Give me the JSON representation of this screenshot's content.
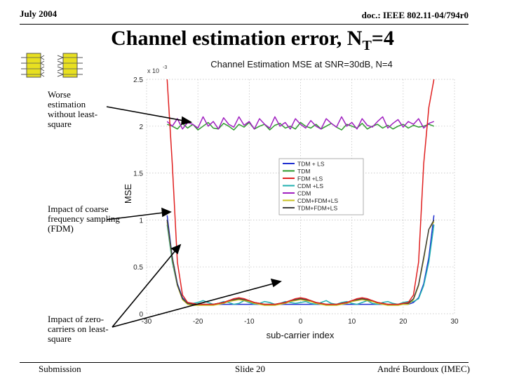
{
  "header": {
    "date": "July 2004",
    "doc": "doc.: IEEE 802.11-04/794r0"
  },
  "slide": {
    "title_main": "Channel estimation error, N",
    "title_sub": "T",
    "title_tail": "=4",
    "annotations": [
      "Worse estimation without least-square",
      "Impact of coarse frequency sampling (FDM)",
      "Impact of zero-carriers on least-square"
    ]
  },
  "footer": {
    "left": "Submission",
    "center": "Slide 20",
    "right": "André Bourdoux (IMEC)"
  },
  "colors": {
    "tdm_ls": "#1f2fd0",
    "tdm": "#2e9a2e",
    "fdm_ls": "#e02020",
    "cdm_ls": "#20b0b0",
    "cdm": "#a020c0",
    "cdm_fdm_ls": "#c8c020",
    "tdm_fdm_ls": "#404040"
  },
  "chart_data": {
    "type": "line",
    "title": "Channel Estimation MSE at SNR=30dB, N=4",
    "xlabel": "sub-carrier index",
    "ylabel": "MSE",
    "yscale_label": "x 10",
    "yscale_exp": "-3",
    "xlim": [
      -30,
      30
    ],
    "ylim": [
      0,
      2.5
    ],
    "xticks": [
      -30,
      -20,
      -10,
      0,
      10,
      20,
      30
    ],
    "xtick_labels": [
      "-30",
      "-20",
      "-10",
      "0",
      "10",
      "20",
      "30"
    ],
    "yticks": [
      0,
      0.5,
      1,
      1.5,
      2,
      2.5
    ],
    "ytick_labels": [
      "0",
      "0.5",
      "1",
      "1.5",
      "2",
      "2.5"
    ],
    "grid": true,
    "legend_position": "right",
    "x": [
      -26,
      -25,
      -24,
      -23,
      -22,
      -21,
      -20,
      -19,
      -18,
      -17,
      -16,
      -15,
      -14,
      -13,
      -12,
      -11,
      -10,
      -9,
      -8,
      -7,
      -6,
      -5,
      -4,
      -3,
      -2,
      -1,
      0,
      1,
      2,
      3,
      4,
      5,
      6,
      7,
      8,
      9,
      10,
      11,
      12,
      13,
      14,
      15,
      16,
      17,
      18,
      19,
      20,
      21,
      22,
      23,
      24,
      25,
      26
    ],
    "series": [
      {
        "name": "TDM + LS",
        "color_key": "tdm_ls",
        "values": [
          1.05,
          0.6,
          0.32,
          0.17,
          0.12,
          0.1,
          0.1,
          0.1,
          0.1,
          0.1,
          0.1,
          0.1,
          0.1,
          0.1,
          0.1,
          0.1,
          0.1,
          0.1,
          0.1,
          0.1,
          0.1,
          0.1,
          0.1,
          0.1,
          0.1,
          0.1,
          0.1,
          0.1,
          0.1,
          0.1,
          0.1,
          0.1,
          0.1,
          0.1,
          0.1,
          0.1,
          0.1,
          0.1,
          0.1,
          0.1,
          0.1,
          0.1,
          0.1,
          0.1,
          0.1,
          0.1,
          0.1,
          0.1,
          0.12,
          0.17,
          0.32,
          0.6,
          1.05
        ]
      },
      {
        "name": "TDM",
        "color_key": "tdm",
        "values": [
          2.02,
          2.0,
          1.97,
          2.03,
          1.98,
          2.02,
          1.96,
          2.0,
          2.04,
          1.98,
          1.97,
          2.03,
          2.0,
          1.96,
          2.02,
          1.99,
          2.04,
          1.97,
          2.0,
          2.02,
          1.96,
          2.01,
          2.03,
          1.98,
          2.0,
          1.97,
          2.04,
          2.0,
          1.98,
          2.02,
          1.97,
          2.0,
          2.03,
          1.99,
          1.96,
          2.02,
          2.0,
          1.98,
          2.03,
          1.97,
          2.0,
          2.02,
          1.98,
          2.01,
          1.97,
          2.0,
          2.02,
          1.98,
          2.01,
          1.99,
          2.0,
          2.02,
          2.0
        ]
      },
      {
        "name": "FDM +LS",
        "color_key": "fdm_ls",
        "values": [
          2.5,
          1.6,
          0.55,
          0.2,
          0.12,
          0.11,
          0.1,
          0.1,
          0.1,
          0.1,
          0.11,
          0.12,
          0.14,
          0.16,
          0.17,
          0.16,
          0.14,
          0.12,
          0.11,
          0.1,
          0.1,
          0.1,
          0.11,
          0.12,
          0.14,
          0.16,
          0.17,
          0.16,
          0.14,
          0.12,
          0.11,
          0.1,
          0.1,
          0.1,
          0.11,
          0.12,
          0.14,
          0.16,
          0.17,
          0.16,
          0.14,
          0.12,
          0.11,
          0.1,
          0.1,
          0.1,
          0.11,
          0.12,
          0.2,
          0.55,
          1.6,
          2.2,
          2.5
        ]
      },
      {
        "name": "CDM +LS",
        "color_key": "cdm_ls",
        "values": [
          0.95,
          0.55,
          0.3,
          0.16,
          0.12,
          0.11,
          0.12,
          0.14,
          0.12,
          0.1,
          0.11,
          0.13,
          0.12,
          0.1,
          0.11,
          0.14,
          0.12,
          0.1,
          0.11,
          0.13,
          0.12,
          0.1,
          0.11,
          0.13,
          0.12,
          0.11,
          0.12,
          0.13,
          0.11,
          0.1,
          0.12,
          0.14,
          0.11,
          0.1,
          0.12,
          0.13,
          0.11,
          0.1,
          0.12,
          0.14,
          0.11,
          0.1,
          0.12,
          0.13,
          0.11,
          0.1,
          0.12,
          0.13,
          0.13,
          0.16,
          0.3,
          0.55,
          0.95
        ]
      },
      {
        "name": "CDM",
        "color_key": "cdm",
        "values": [
          2.05,
          2.0,
          2.08,
          1.97,
          2.04,
          2.02,
          1.98,
          2.1,
          2.0,
          2.05,
          1.97,
          2.09,
          2.02,
          1.99,
          2.1,
          2.01,
          2.05,
          1.97,
          2.08,
          2.02,
          1.98,
          2.1,
          2.0,
          2.04,
          1.97,
          2.08,
          2.02,
          1.98,
          2.06,
          2.0,
          1.97,
          2.08,
          2.03,
          1.99,
          2.1,
          2.0,
          2.04,
          1.97,
          2.08,
          2.01,
          1.99,
          2.05,
          2.1,
          1.98,
          2.03,
          2.07,
          1.99,
          2.05,
          2.02,
          2.08,
          1.98,
          2.03,
          2.05
        ]
      },
      {
        "name": "CDM+FDM+LS",
        "color_key": "cdm_fdm_ls",
        "values": [
          0.98,
          0.58,
          0.3,
          0.15,
          0.1,
          0.09,
          0.09,
          0.09,
          0.09,
          0.09,
          0.1,
          0.11,
          0.13,
          0.14,
          0.15,
          0.14,
          0.13,
          0.11,
          0.1,
          0.09,
          0.09,
          0.09,
          0.1,
          0.11,
          0.13,
          0.14,
          0.15,
          0.14,
          0.13,
          0.11,
          0.1,
          0.09,
          0.09,
          0.09,
          0.1,
          0.11,
          0.13,
          0.14,
          0.15,
          0.14,
          0.13,
          0.11,
          0.1,
          0.09,
          0.09,
          0.09,
          0.1,
          0.1,
          0.15,
          0.3,
          0.58,
          0.9,
          0.98
        ]
      },
      {
        "name": "TDM+FDM+LS",
        "color_key": "tdm_fdm_ls",
        "values": [
          1.0,
          0.6,
          0.31,
          0.16,
          0.11,
          0.1,
          0.1,
          0.1,
          0.1,
          0.1,
          0.11,
          0.12,
          0.14,
          0.15,
          0.16,
          0.15,
          0.14,
          0.12,
          0.11,
          0.1,
          0.1,
          0.1,
          0.11,
          0.12,
          0.14,
          0.15,
          0.16,
          0.15,
          0.14,
          0.12,
          0.11,
          0.1,
          0.1,
          0.1,
          0.11,
          0.12,
          0.14,
          0.15,
          0.16,
          0.15,
          0.14,
          0.12,
          0.11,
          0.1,
          0.1,
          0.1,
          0.11,
          0.11,
          0.16,
          0.31,
          0.6,
          0.9,
          1.0
        ]
      }
    ]
  }
}
